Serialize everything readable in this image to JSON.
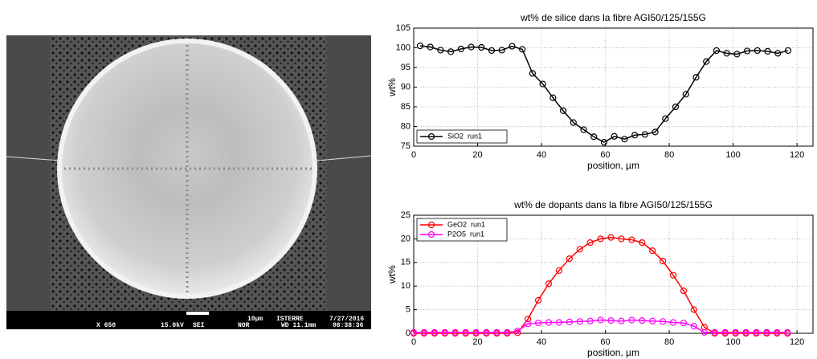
{
  "sem_image": {
    "scale": "10µm",
    "lab": "ISTERRE",
    "date": "7/27/2016",
    "magnification": "X 650",
    "voltage": "15.0kV",
    "mode": "SEI",
    "detector": "NOR",
    "working_distance": "WD 11.1mm",
    "time": "08:38:36"
  },
  "chart_data": [
    {
      "type": "line",
      "title": "wt% de silice dans la fibre AGI50/125/155G",
      "x_label": "position, µm",
      "y_label": "wt%",
      "x": [
        2,
        5.2,
        8.4,
        11.6,
        14.8,
        18,
        21.2,
        24.4,
        27.6,
        30.8,
        34,
        37.2,
        40.4,
        43.6,
        46.8,
        50,
        53.2,
        56.4,
        59.6,
        62.8,
        66,
        69.2,
        72.4,
        75.6,
        78.8,
        82,
        85.2,
        88.4,
        91.6,
        94.8,
        98,
        101.2,
        104.4,
        107.6,
        110.8,
        114,
        117.2
      ],
      "series": [
        {
          "name": "SiO2  run1",
          "color": "#000000",
          "values": [
            100.5,
            100.2,
            99.4,
            99.0,
            99.7,
            100.2,
            100.1,
            99.3,
            99.4,
            100.4,
            99.6,
            93.5,
            90.8,
            87.3,
            84.0,
            81.0,
            79.2,
            77.4,
            76.0,
            77.5,
            76.8,
            77.8,
            78.0,
            78.6,
            82.0,
            85.0,
            88.2,
            92.5,
            96.5,
            99.3,
            98.6,
            98.4,
            99.2,
            99.3,
            99.1,
            98.6,
            99.3
          ]
        }
      ],
      "xlim": [
        0,
        125
      ],
      "xticks": [
        0,
        20,
        40,
        60,
        80,
        100,
        120
      ],
      "ylim": [
        75,
        105
      ],
      "yticks": [
        75,
        80,
        85,
        90,
        95,
        100,
        105
      ],
      "grid": true,
      "legend": "lower left"
    },
    {
      "type": "line",
      "title": "wt% de dopants dans la fibre AGI50/125/155G",
      "x_label": "position, µm",
      "y_label": "wt%",
      "x": [
        0,
        3.25,
        6.5,
        9.75,
        13,
        16.25,
        19.5,
        22.75,
        26,
        29.25,
        32.5,
        35.75,
        39,
        42.25,
        45.5,
        48.75,
        52,
        55.25,
        58.5,
        61.75,
        65,
        68.25,
        71.5,
        74.75,
        78,
        81.25,
        84.5,
        87.75,
        91,
        94.25,
        97.5,
        100.75,
        104,
        107.25,
        110.5,
        113.75,
        117
      ],
      "series": [
        {
          "name": "GeO2  run1",
          "color": "#ff0000",
          "values": [
            0,
            0,
            0,
            0,
            0,
            0,
            0,
            0,
            0,
            0,
            0.1,
            3.0,
            7.0,
            10.5,
            13.3,
            15.8,
            17.8,
            19.2,
            20.0,
            20.3,
            20.0,
            19.8,
            19.2,
            17.5,
            15.3,
            12.3,
            9.0,
            5.0,
            1.3,
            0,
            0,
            0,
            0,
            0,
            0,
            0,
            0
          ]
        },
        {
          "name": "P2O5  run1",
          "color": "#ff00ff",
          "values": [
            0.2,
            0.2,
            0.2,
            0.2,
            0.2,
            0.2,
            0.2,
            0.2,
            0.2,
            0.2,
            0.5,
            2.0,
            2.2,
            2.3,
            2.3,
            2.4,
            2.5,
            2.6,
            2.8,
            2.7,
            2.6,
            2.8,
            2.7,
            2.6,
            2.5,
            2.3,
            2.2,
            1.5,
            0.2,
            0.2,
            0.2,
            0.2,
            0.2,
            0.2,
            0.2,
            0.2,
            0.2
          ]
        }
      ],
      "xlim": [
        0,
        125
      ],
      "xticks": [
        0,
        20,
        40,
        60,
        80,
        100,
        120
      ],
      "ylim": [
        0,
        25
      ],
      "yticks": [
        0,
        5,
        10,
        15,
        20,
        25
      ],
      "grid": true,
      "legend": "upper left"
    }
  ]
}
